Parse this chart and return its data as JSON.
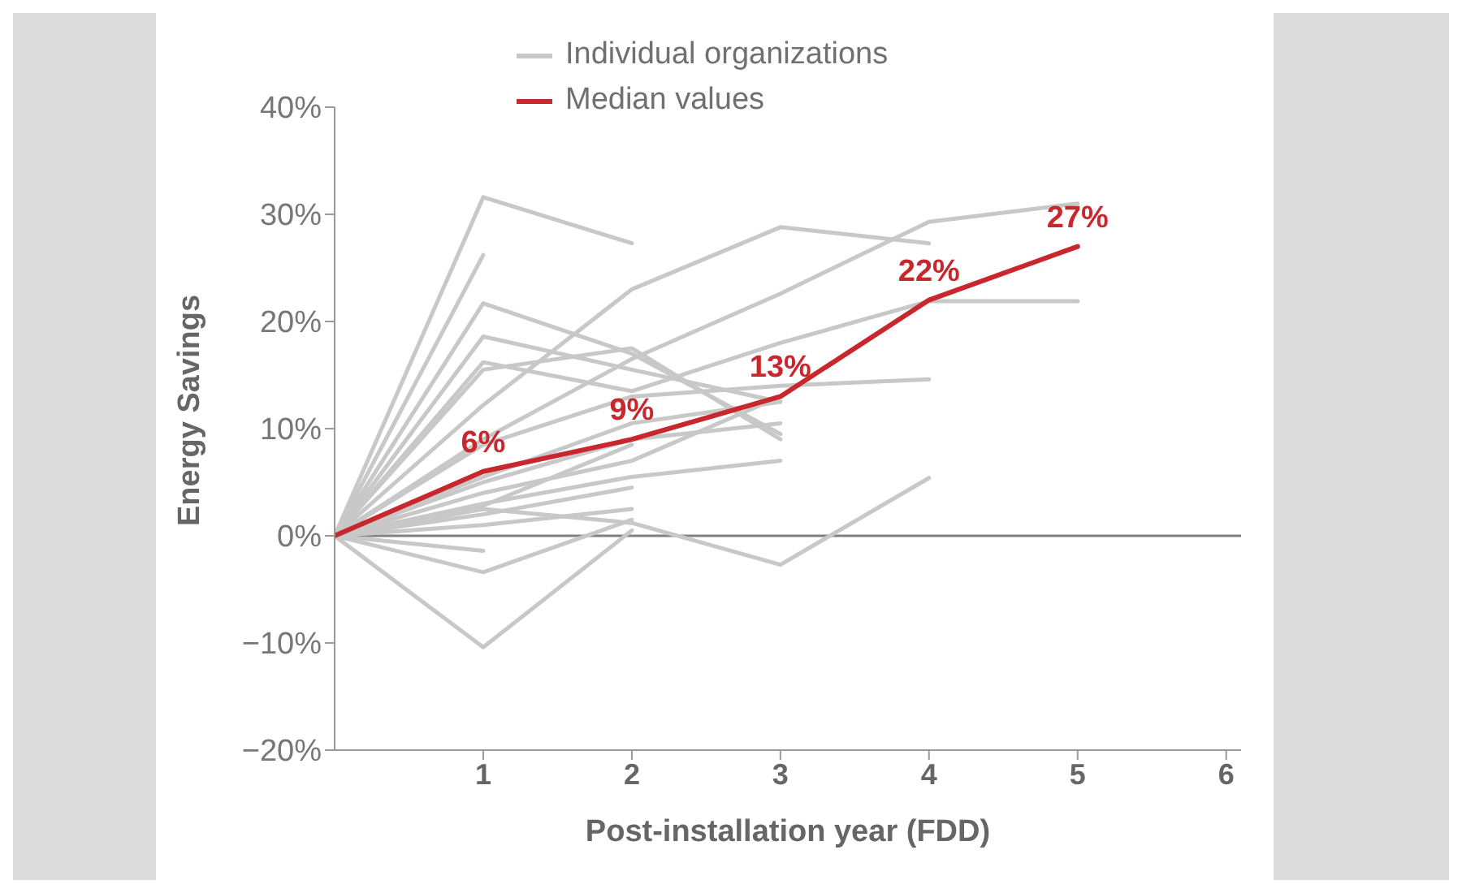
{
  "chart_data": {
    "type": "line",
    "xlabel": "Post-installation year (FDD)",
    "ylabel": "Energy Savings",
    "x": [
      0,
      1,
      2,
      3,
      4,
      5
    ],
    "xlim": [
      0,
      6.1
    ],
    "xticks": [
      1,
      2,
      3,
      4,
      5,
      6
    ],
    "ylim": [
      -20,
      40
    ],
    "yticks": [
      {
        "value": -20,
        "label": "−20%"
      },
      {
        "value": -10,
        "label": "−10%"
      },
      {
        "value": 0,
        "label": "0%"
      },
      {
        "value": 10,
        "label": "10%"
      },
      {
        "value": 20,
        "label": "20%"
      },
      {
        "value": 30,
        "label": "30%"
      },
      {
        "value": 40,
        "label": "40%"
      }
    ],
    "ref_lines": [
      {
        "axis": "y",
        "value": 0,
        "color": "#808080"
      }
    ],
    "legend": "top",
    "marker": "none",
    "line_style": "solid",
    "grid": false,
    "series": [
      {
        "name": "Individual organizations",
        "color": "#c8c8c8",
        "values": [
          0,
          31.6,
          27.3,
          null,
          null,
          null
        ]
      },
      {
        "color": "#c8c8c8",
        "values": [
          0,
          26.2,
          null,
          null,
          null,
          null
        ]
      },
      {
        "color": "#c8c8c8",
        "values": [
          0,
          21.7,
          17,
          9.5,
          null,
          null
        ]
      },
      {
        "color": "#c8c8c8",
        "values": [
          0,
          18.6,
          15.5,
          12.5,
          null,
          null
        ]
      },
      {
        "color": "#c8c8c8",
        "values": [
          0,
          16.2,
          13.5,
          18,
          21.9,
          21.9
        ]
      },
      {
        "color": "#c8c8c8",
        "values": [
          0,
          15.5,
          17.5,
          9,
          null,
          null
        ]
      },
      {
        "color": "#c8c8c8",
        "values": [
          0,
          12.2,
          23,
          28.8,
          27.3,
          null
        ]
      },
      {
        "color": "#c8c8c8",
        "values": [
          0,
          9,
          16.5,
          22.6,
          29.3,
          31
        ]
      },
      {
        "color": "#c8c8c8",
        "values": [
          0,
          8.5,
          13,
          14,
          14.6,
          null
        ]
      },
      {
        "color": "#c8c8c8",
        "values": [
          0,
          5,
          9,
          10.5,
          null,
          null
        ]
      },
      {
        "color": "#c8c8c8",
        "values": [
          0,
          4,
          7,
          13,
          null,
          null
        ]
      },
      {
        "color": "#c8c8c8",
        "values": [
          0,
          3,
          5.5,
          7,
          null,
          null
        ]
      },
      {
        "color": "#c8c8c8",
        "values": [
          0,
          2.5,
          1.2,
          -2.7,
          5.4,
          null
        ]
      },
      {
        "color": "#c8c8c8",
        "values": [
          0,
          2,
          4.5,
          null,
          null,
          null
        ]
      },
      {
        "color": "#c8c8c8",
        "values": [
          0,
          1,
          2.5,
          null,
          null,
          null
        ]
      },
      {
        "color": "#c8c8c8",
        "values": [
          0,
          -1.4,
          null,
          null,
          null,
          null
        ]
      },
      {
        "color": "#c8c8c8",
        "values": [
          0,
          -3.4,
          1.5,
          null,
          null,
          null
        ]
      },
      {
        "color": "#c8c8c8",
        "values": [
          0,
          -10.4,
          0.5,
          null,
          null,
          null
        ]
      },
      {
        "color": "#c8c8c8",
        "values": [
          0,
          5.5,
          10.5,
          12.5,
          null,
          null
        ]
      },
      {
        "color": "#c8c8c8",
        "values": [
          0,
          2.8,
          8.5,
          null,
          null,
          null
        ]
      },
      {
        "name": "Median values",
        "color": "#c8282d",
        "values": [
          0,
          6,
          9,
          13,
          22,
          27
        ],
        "value_labels": [
          null,
          "6%",
          "9%",
          "13%",
          "22%",
          "27%"
        ]
      }
    ]
  }
}
